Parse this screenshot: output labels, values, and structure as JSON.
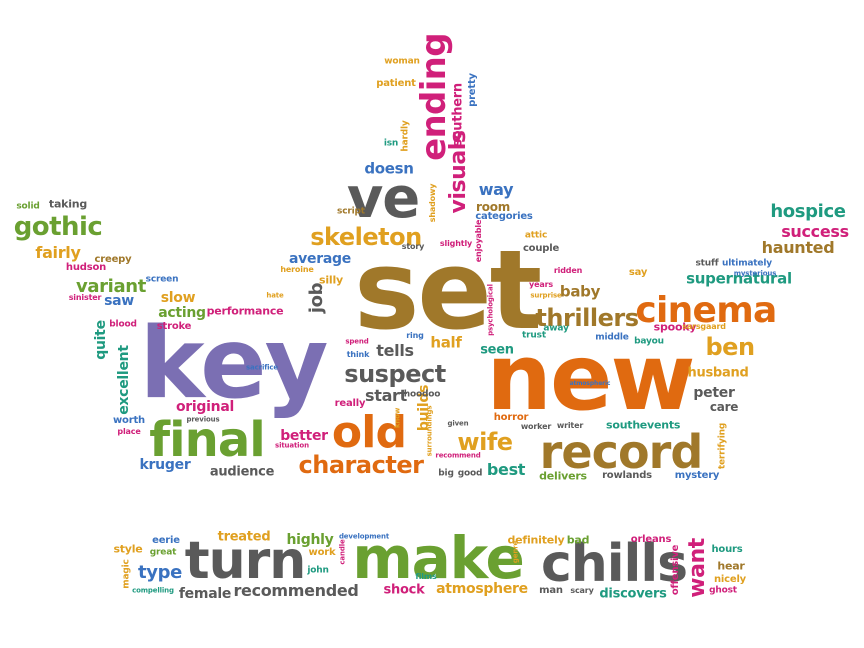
{
  "palette": {
    "purple": "#7b6fb3",
    "green": "#6aa031",
    "orange": "#e06a10",
    "gold": "#b8860b",
    "brown": "#a0782a",
    "gray": "#5a5a5a",
    "magenta": "#d0207a",
    "blue": "#3a72c0",
    "teal": "#1f9a80",
    "amber": "#e0a020"
  },
  "words": [
    {
      "text": "key",
      "color": "purple"
    },
    {
      "text": "set",
      "color": "brown"
    },
    {
      "text": "new",
      "color": "orange"
    },
    {
      "text": "make",
      "color": "green"
    },
    {
      "text": "chills",
      "color": "gray"
    },
    {
      "text": "turn",
      "color": "gray"
    },
    {
      "text": "record",
      "color": "brown"
    },
    {
      "text": "final",
      "color": "green"
    },
    {
      "text": "old",
      "color": "orange"
    },
    {
      "text": "ve",
      "color": "gray"
    },
    {
      "text": "ending",
      "color": "magenta"
    },
    {
      "text": "cinema",
      "color": "orange"
    },
    {
      "text": "character",
      "color": "orange"
    },
    {
      "text": "skeleton",
      "color": "amber"
    },
    {
      "text": "thrillers",
      "color": "brown"
    },
    {
      "text": "suspect",
      "color": "gray"
    },
    {
      "text": "ben",
      "color": "amber"
    },
    {
      "text": "gothic",
      "color": "green"
    },
    {
      "text": "visuals",
      "color": "magenta"
    },
    {
      "text": "wife",
      "color": "amber"
    },
    {
      "text": "want",
      "color": "magenta"
    },
    {
      "text": "hospice",
      "color": "teal"
    },
    {
      "text": "success",
      "color": "magenta"
    },
    {
      "text": "haunted",
      "color": "brown"
    },
    {
      "text": "supernatural",
      "color": "teal"
    },
    {
      "text": "doesn",
      "color": "blue"
    },
    {
      "text": "way",
      "color": "blue"
    },
    {
      "text": "room",
      "color": "brown"
    },
    {
      "text": "categories",
      "color": "blue"
    },
    {
      "text": "average",
      "color": "blue"
    },
    {
      "text": "tells",
      "color": "gray"
    },
    {
      "text": "start",
      "color": "gray"
    },
    {
      "text": "half",
      "color": "amber"
    },
    {
      "text": "seen",
      "color": "teal"
    },
    {
      "text": "baby",
      "color": "brown"
    },
    {
      "text": "best",
      "color": "teal"
    },
    {
      "text": "delivers",
      "color": "green"
    },
    {
      "text": "better",
      "color": "magenta"
    },
    {
      "text": "original",
      "color": "magenta"
    },
    {
      "text": "audience",
      "color": "gray"
    },
    {
      "text": "kruger",
      "color": "blue"
    },
    {
      "text": "excellent",
      "color": "teal"
    },
    {
      "text": "quite",
      "color": "teal"
    },
    {
      "text": "variant",
      "color": "green"
    },
    {
      "text": "fairly",
      "color": "amber"
    },
    {
      "text": "creepy",
      "color": "brown"
    },
    {
      "text": "hudson",
      "color": "magenta"
    },
    {
      "text": "solid",
      "color": "green"
    },
    {
      "text": "taking",
      "color": "gray"
    },
    {
      "text": "saw",
      "color": "blue"
    },
    {
      "text": "slow",
      "color": "amber"
    },
    {
      "text": "acting",
      "color": "green"
    },
    {
      "text": "stroke",
      "color": "magenta"
    },
    {
      "text": "performance",
      "color": "magenta"
    },
    {
      "text": "job",
      "color": "gray"
    },
    {
      "text": "screen",
      "color": "blue"
    },
    {
      "text": "silly",
      "color": "amber"
    },
    {
      "text": "peter",
      "color": "gray"
    },
    {
      "text": "care",
      "color": "gray"
    },
    {
      "text": "husband",
      "color": "amber"
    },
    {
      "text": "spooky",
      "color": "magenta"
    },
    {
      "text": "south",
      "color": "teal"
    },
    {
      "text": "events",
      "color": "teal"
    },
    {
      "text": "rowlands",
      "color": "gray"
    },
    {
      "text": "mystery",
      "color": "blue"
    },
    {
      "text": "terrifying",
      "color": "amber"
    },
    {
      "text": "horror",
      "color": "orange"
    },
    {
      "text": "builds",
      "color": "amber"
    },
    {
      "text": "big",
      "color": "gray"
    },
    {
      "text": "good",
      "color": "gray"
    },
    {
      "text": "worker",
      "color": "gray"
    },
    {
      "text": "highly",
      "color": "green"
    },
    {
      "text": "treated",
      "color": "amber"
    },
    {
      "text": "eerie",
      "color": "blue"
    },
    {
      "text": "style",
      "color": "amber"
    },
    {
      "text": "type",
      "color": "blue"
    },
    {
      "text": "female",
      "color": "gray"
    },
    {
      "text": "recommended",
      "color": "gray"
    },
    {
      "text": "shock",
      "color": "magenta"
    },
    {
      "text": "atmosphere",
      "color": "amber"
    },
    {
      "text": "definitely",
      "color": "amber"
    },
    {
      "text": "bad",
      "color": "green"
    },
    {
      "text": "orleans",
      "color": "magenta"
    },
    {
      "text": "discovers",
      "color": "teal"
    },
    {
      "text": "hours",
      "color": "teal"
    },
    {
      "text": "hear",
      "color": "brown"
    },
    {
      "text": "nicely",
      "color": "amber"
    },
    {
      "text": "ghost",
      "color": "magenta"
    },
    {
      "text": "man",
      "color": "gray"
    },
    {
      "text": "scary",
      "color": "gray"
    },
    {
      "text": "john",
      "color": "teal"
    },
    {
      "text": "work",
      "color": "amber"
    },
    {
      "text": "offensive",
      "color": "magenta"
    },
    {
      "text": "magic",
      "color": "amber"
    },
    {
      "text": "compelling",
      "color": "teal"
    },
    {
      "text": "great",
      "color": "green"
    },
    {
      "text": "candle",
      "color": "magenta"
    },
    {
      "text": "development",
      "color": "blue"
    },
    {
      "text": "woman",
      "color": "amber"
    },
    {
      "text": "patient",
      "color": "amber"
    },
    {
      "text": "southern",
      "color": "magenta"
    },
    {
      "text": "pretty",
      "color": "blue"
    },
    {
      "text": "isn",
      "color": "teal"
    },
    {
      "text": "hardly",
      "color": "amber"
    },
    {
      "text": "attic",
      "color": "amber"
    },
    {
      "text": "shadowy",
      "color": "amber"
    },
    {
      "text": "script",
      "color": "brown"
    },
    {
      "text": "story",
      "color": "gray"
    },
    {
      "text": "slightly",
      "color": "magenta"
    },
    {
      "text": "enjoyable",
      "color": "magenta"
    },
    {
      "text": "couple",
      "color": "gray"
    },
    {
      "text": "ridden",
      "color": "magenta"
    },
    {
      "text": "years",
      "color": "magenta"
    },
    {
      "text": "surprise",
      "color": "amber"
    },
    {
      "text": "say",
      "color": "amber"
    },
    {
      "text": "stuff",
      "color": "gray"
    },
    {
      "text": "ultimately",
      "color": "blue"
    },
    {
      "text": "mysterious",
      "color": "blue"
    },
    {
      "text": "sarsgaard",
      "color": "amber"
    },
    {
      "text": "bayou",
      "color": "teal"
    },
    {
      "text": "middle",
      "color": "blue"
    },
    {
      "text": "trust",
      "color": "teal"
    },
    {
      "text": "away",
      "color": "teal"
    },
    {
      "text": "psychological",
      "color": "magenta"
    },
    {
      "text": "blood",
      "color": "magenta"
    },
    {
      "text": "sinister",
      "color": "magenta"
    },
    {
      "text": "heroine",
      "color": "amber"
    },
    {
      "text": "hate",
      "color": "amber"
    },
    {
      "text": "think",
      "color": "blue"
    },
    {
      "text": "spend",
      "color": "magenta"
    },
    {
      "text": "sacrifice",
      "color": "blue"
    },
    {
      "text": "ring",
      "color": "blue"
    },
    {
      "text": "hoodoo",
      "color": "gray"
    },
    {
      "text": "really",
      "color": "magenta"
    },
    {
      "text": "worth",
      "color": "blue"
    },
    {
      "text": "place",
      "color": "magenta"
    },
    {
      "text": "previous",
      "color": "gray"
    },
    {
      "text": "situation",
      "color": "magenta"
    },
    {
      "text": "surroundings",
      "color": "amber"
    },
    {
      "text": "know",
      "color": "amber"
    },
    {
      "text": "recommend",
      "color": "magenta"
    },
    {
      "text": "given",
      "color": "gray"
    },
    {
      "text": "writer",
      "color": "gray"
    },
    {
      "text": "atmospheric",
      "color": "blue"
    },
    {
      "text": "genre",
      "color": "amber"
    },
    {
      "text": "films",
      "color": "teal"
    }
  ]
}
